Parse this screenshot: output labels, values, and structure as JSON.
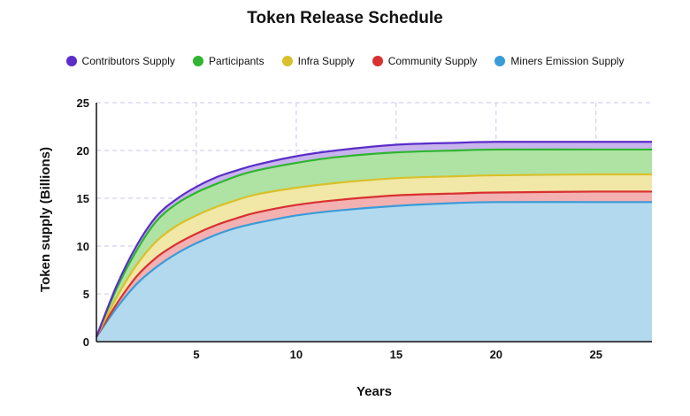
{
  "chart_data": {
    "type": "area",
    "title": "Token Release Schedule",
    "xlabel": "Years",
    "ylabel": "Token supply (Billions)",
    "xlim": [
      0,
      27.8
    ],
    "ylim": [
      0,
      25
    ],
    "xticks": [
      5,
      10,
      15,
      20,
      25
    ],
    "yticks": [
      0,
      5,
      10,
      15,
      20,
      25
    ],
    "grid": true,
    "stacked": true,
    "legend_position": "top",
    "x": [
      0,
      1,
      2,
      3,
      4,
      5,
      6,
      7,
      8,
      10,
      12,
      15,
      18,
      20,
      25,
      27.8
    ],
    "cumulative_series": [
      {
        "name": "Miners Emission Supply",
        "color": "#3a9bd9",
        "fill": "#b3d9ef",
        "values": [
          0.5,
          3.5,
          6.0,
          7.8,
          9.2,
          10.3,
          11.2,
          11.9,
          12.4,
          13.2,
          13.7,
          14.2,
          14.5,
          14.6,
          14.6,
          14.6
        ]
      },
      {
        "name": "Community Supply",
        "color": "#d93030",
        "fill": "#f3b1b1",
        "values": [
          0.5,
          3.9,
          6.8,
          8.8,
          10.2,
          11.3,
          12.2,
          12.9,
          13.5,
          14.3,
          14.8,
          15.3,
          15.5,
          15.6,
          15.7,
          15.7
        ]
      },
      {
        "name": "Infra Supply",
        "color": "#d9c02a",
        "fill": "#f1e7a6",
        "values": [
          0.5,
          4.6,
          8.0,
          10.5,
          12.1,
          13.2,
          14.1,
          14.8,
          15.4,
          16.1,
          16.6,
          17.1,
          17.3,
          17.4,
          17.5,
          17.5
        ]
      },
      {
        "name": "Participants",
        "color": "#2fb52f",
        "fill": "#aee3a3",
        "values": [
          0.5,
          5.5,
          9.5,
          12.6,
          14.4,
          15.6,
          16.5,
          17.3,
          17.9,
          18.7,
          19.3,
          19.8,
          20.0,
          20.1,
          20.1,
          20.1
        ]
      },
      {
        "name": "Contributors Supply",
        "color": "#5b2dc9",
        "fill": "#c7b4ec",
        "values": [
          0.5,
          5.8,
          10.0,
          13.1,
          14.9,
          16.2,
          17.2,
          17.9,
          18.5,
          19.4,
          20.0,
          20.6,
          20.8,
          20.9,
          20.9,
          20.9
        ]
      }
    ],
    "legend": [
      {
        "name": "Contributors Supply",
        "color": "#5b2dc9"
      },
      {
        "name": "Participants",
        "color": "#2fb52f"
      },
      {
        "name": "Infra Supply",
        "color": "#d9c02a"
      },
      {
        "name": "Community Supply",
        "color": "#d93030"
      },
      {
        "name": "Miners Emission Supply",
        "color": "#3a9bd9"
      }
    ]
  }
}
